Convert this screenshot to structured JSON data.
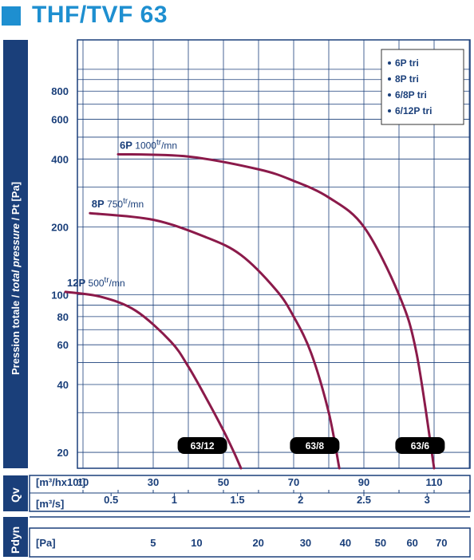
{
  "page_title": "THF/TVF 63",
  "chart_data": {
    "type": "line",
    "ylabel": "Pression totale / total pressure / Pt [Pa]",
    "ylabel_parts": [
      "Pression totale / ",
      "total pressure",
      " / Pt [Pa]"
    ],
    "y_scale": "log",
    "ylim": [
      17,
      1350
    ],
    "y_ticks": [
      20,
      40,
      60,
      80,
      100,
      200,
      400,
      600,
      800
    ],
    "y_grid": [
      20,
      30,
      40,
      50,
      60,
      70,
      80,
      90,
      100,
      200,
      300,
      400,
      500,
      600,
      700,
      800,
      900,
      1000
    ],
    "xlim_m3h_x100": [
      1,
      125
    ],
    "x_grid": [
      5,
      10,
      20,
      30,
      40,
      50,
      60,
      70,
      80,
      90,
      100,
      110,
      120
    ],
    "flow_unit_m3h": "[m³/hx10²]",
    "flow_ticks_m3h": [
      "10",
      "30",
      "50",
      "70",
      "90",
      "110"
    ],
    "flow_tick_values_m3h": [
      10,
      30,
      50,
      70,
      90,
      110
    ],
    "flow_unit_m3s": "[m³/s]",
    "flow_ticks_m3s": [
      "0.5",
      "1",
      "1.5",
      "2",
      "2.5",
      "3"
    ],
    "flow_tick_values_m3s": [
      0.5,
      1,
      1.5,
      2,
      2.5,
      3
    ],
    "qv_label": "Qv",
    "pdyn_label": "Pdyn",
    "pdyn_unit": "[Pa]",
    "pdyn_ticks": [
      "5",
      "10",
      "20",
      "30",
      "40",
      "50",
      "60",
      "70"
    ],
    "pdyn_tick_values": [
      5,
      10,
      20,
      30,
      40,
      50,
      60,
      70
    ],
    "series": [
      {
        "name": "6P",
        "speed_label": "1000",
        "speed_unit_sup": "tr",
        "speed_unit": "/mn",
        "x": [
          20,
          40,
          60,
          70,
          80,
          90,
          100,
          105,
          110
        ],
        "y": [
          420,
          410,
          360,
          320,
          270,
          200,
          100,
          55,
          17
        ]
      },
      {
        "name": "8P",
        "speed_label": "750",
        "speed_unit_sup": "tr",
        "speed_unit": "/mn",
        "x": [
          12,
          30,
          45,
          55,
          65,
          70,
          75,
          80,
          83
        ],
        "y": [
          230,
          215,
          180,
          150,
          105,
          80,
          55,
          30,
          17
        ]
      },
      {
        "name": "12P",
        "speed_label": "500",
        "speed_unit_sup": "tr",
        "speed_unit": "/mn",
        "x": [
          5,
          15,
          25,
          35,
          40,
          45,
          50,
          53,
          55
        ],
        "y": [
          103,
          98,
          85,
          62,
          48,
          35,
          25,
          20,
          17
        ]
      }
    ],
    "size_tags": [
      "63/12",
      "63/8",
      "63/6"
    ],
    "size_tag_x": [
      44,
      76,
      106
    ],
    "legend": [
      "6P tri",
      "8P tri",
      "6/8P tri",
      "6/12P tri"
    ],
    "legend_position": "top-right",
    "colors": {
      "curve": "#8b1a4a",
      "grid": "#1a3f7a",
      "label": "#1a3f7a",
      "title": "#1e8fd0",
      "tag": "#000000"
    }
  }
}
